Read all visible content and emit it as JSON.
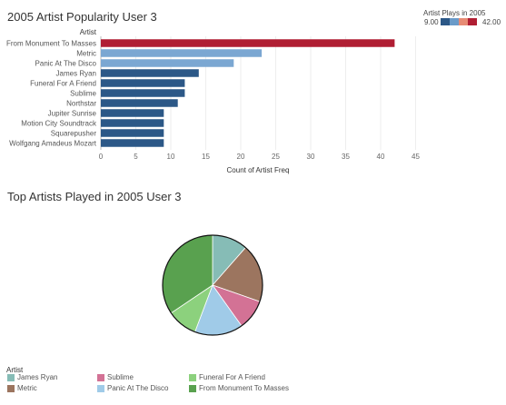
{
  "bar_section": {
    "title": "2005 Artist Popularity User 3",
    "color_legend": {
      "title": "Artist Plays in 2005",
      "min_label": "9.00",
      "max_label": "42.00",
      "ramp_colors": [
        "#2c5887",
        "#6a9bc9",
        "#e78b74",
        "#b01e33"
      ]
    }
  },
  "pie_section": {
    "title": "Top Artists Played in 2005 User 3",
    "legend_title": "Artist"
  },
  "chart_data": [
    {
      "type": "bar",
      "orientation": "horizontal",
      "title": "2005 Artist Popularity User 3",
      "ylabel": "Artist",
      "xlabel": "Count of Artist Freq",
      "xlim": [
        0,
        45
      ],
      "xticks": [
        0,
        5,
        10,
        15,
        20,
        25,
        30,
        35,
        40,
        45
      ],
      "grid": true,
      "categories": [
        "From Monument To Masses",
        "Metric",
        "Panic At The Disco",
        "James Ryan",
        "Funeral For A Friend",
        "Sublime",
        "Northstar",
        "Jupiter Sunrise",
        "Motion City Soundtrack",
        "Squarepusher",
        "Wolfgang Amadeus Mozart"
      ],
      "values": [
        42,
        23,
        19,
        14,
        12,
        12,
        11,
        9,
        9,
        9,
        9
      ],
      "colors": [
        "#b01e33",
        "#7ba7d2",
        "#7ba7d2",
        "#2c5887",
        "#2c5887",
        "#2c5887",
        "#2c5887",
        "#2c5887",
        "#2c5887",
        "#2c5887",
        "#2c5887"
      ],
      "color_legend": {
        "title": "Artist Plays in 2005",
        "range": [
          9,
          42
        ],
        "placement": "top-right"
      }
    },
    {
      "type": "pie",
      "title": "Top Artists Played in 2005 User 3",
      "legend_title": "Artist",
      "legend_placement": "bottom",
      "slices": [
        {
          "label": "James Ryan",
          "value": 14,
          "color": "#86bcb6"
        },
        {
          "label": "Metric",
          "value": 23,
          "color": "#9c755f"
        },
        {
          "label": "Sublime",
          "value": 12,
          "color": "#d37295"
        },
        {
          "label": "Panic At The Disco",
          "value": 19,
          "color": "#a0cbe8"
        },
        {
          "label": "Funeral For A Friend",
          "value": 12,
          "color": "#8cd17d"
        },
        {
          "label": "From Monument To Masses",
          "value": 42,
          "color": "#59a14f"
        }
      ]
    }
  ]
}
